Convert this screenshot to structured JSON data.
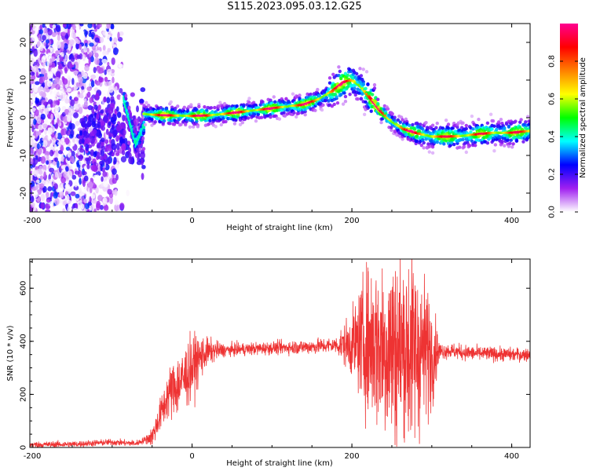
{
  "title": "S115.2023.095.03.12.G25",
  "chart_data": [
    {
      "type": "heatmap",
      "xlabel": "Height of straight line (km)",
      "ylabel": "Frequency (Hz)",
      "xlim": [
        -203,
        423
      ],
      "ylim": [
        -25,
        25
      ],
      "x_ticks": [
        -200,
        0,
        200,
        400
      ],
      "y_ticks": [
        -20,
        -10,
        0,
        10,
        20
      ],
      "colorbar": {
        "label": "Normalized spectral amplitude",
        "range": [
          0,
          1
        ],
        "ticks": [
          0.0,
          0.2,
          0.4,
          0.6,
          0.8
        ],
        "colors": [
          "#ffffff",
          "#a020f0",
          "#0000ff",
          "#00ffff",
          "#00ff00",
          "#ffff00",
          "#ff8000",
          "#ff0000",
          "#ff0090"
        ]
      },
      "ridge": {
        "x": [
          -60,
          -40,
          -20,
          0,
          20,
          40,
          60,
          80,
          100,
          120,
          140,
          160,
          175,
          190,
          200,
          210,
          220,
          235,
          250,
          265,
          280,
          300,
          320,
          340,
          360,
          380,
          400,
          423
        ],
        "y": [
          1,
          0.7,
          0.6,
          0.5,
          0.6,
          1,
          1.5,
          2,
          2.5,
          3,
          3.5,
          5,
          7,
          9.5,
          10,
          8.5,
          6,
          2,
          -1,
          -3,
          -4,
          -5,
          -5,
          -4.8,
          -4.3,
          -4,
          -4,
          -3.5
        ]
      },
      "noise_region": {
        "x": [
          -203,
          -80
        ],
        "y": [
          -25,
          25
        ]
      },
      "transition": {
        "x": [
          -85,
          -80,
          -75,
          -70,
          -65,
          -60
        ],
        "y": [
          5,
          1,
          -3,
          -7,
          -5,
          -2
        ]
      }
    },
    {
      "type": "line",
      "xlabel": "Height of straight line (km)",
      "ylabel": "SNR (10 * v/v)",
      "xlim": [
        -203,
        423
      ],
      "ylim": [
        0,
        710
      ],
      "x_ticks": [
        -200,
        0,
        200,
        400
      ],
      "y_ticks": [
        0,
        200,
        400,
        600
      ],
      "color": "#ee3333",
      "trend": {
        "x": [
          -203,
          -150,
          -100,
          -70,
          -50,
          -40,
          -30,
          -20,
          -10,
          0,
          10,
          20,
          30,
          50,
          100,
          150,
          200,
          220,
          240,
          260,
          280,
          300,
          320,
          350,
          400,
          423
        ],
        "y": [
          10,
          12,
          20,
          15,
          40,
          120,
          200,
          230,
          260,
          300,
          340,
          360,
          365,
          368,
          375,
          380,
          390,
          400,
          380,
          370,
          370,
          360,
          365,
          355,
          350,
          350
        ]
      },
      "noise_amplitude": {
        "x": [
          -203,
          -60,
          -40,
          -20,
          0,
          20,
          40,
          100,
          180,
          200,
          220,
          250,
          270,
          290,
          300,
          310,
          423
        ],
        "y": [
          6,
          6,
          30,
          60,
          60,
          25,
          12,
          12,
          15,
          60,
          140,
          190,
          200,
          140,
          100,
          15,
          12
        ]
      }
    }
  ]
}
